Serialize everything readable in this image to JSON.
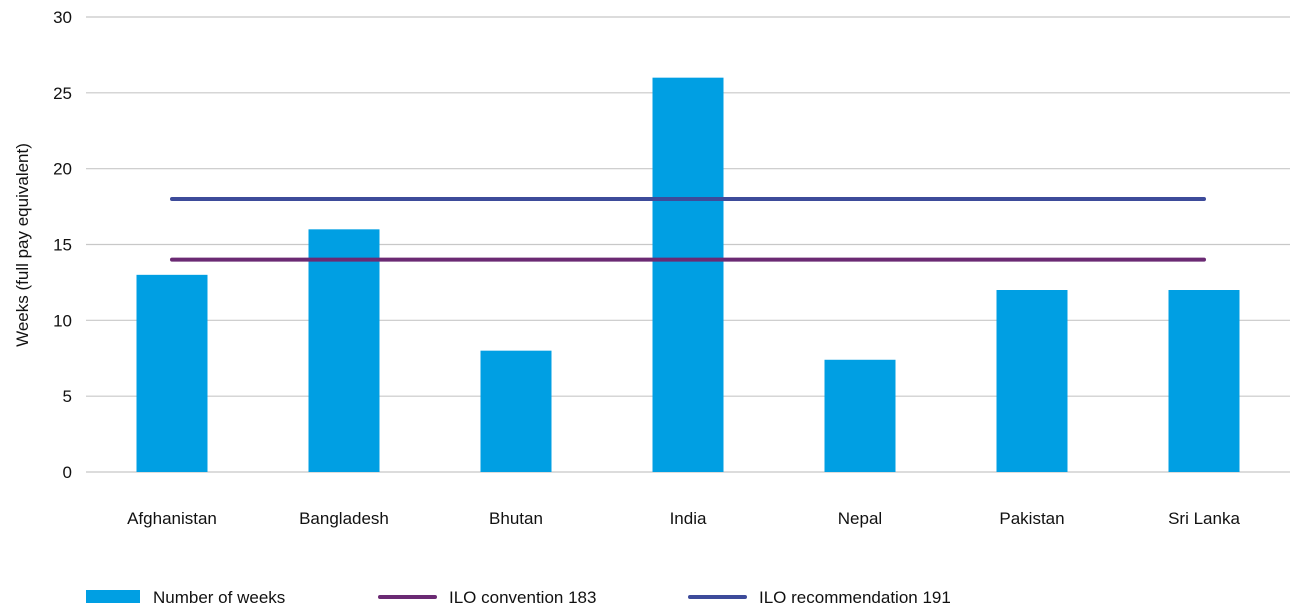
{
  "chart_data": {
    "type": "bar",
    "title": "",
    "xlabel": "",
    "ylabel": "Weeks (full pay equivalent)",
    "ylim": [
      0,
      30
    ],
    "yticks": [
      0,
      5,
      10,
      15,
      20,
      25,
      30
    ],
    "grid": true,
    "legend_position": "bottom-left",
    "categories": [
      "Afghanistan",
      "Bangladesh",
      "Bhutan",
      "India",
      "Nepal",
      "Pakistan",
      "Sri Lanka"
    ],
    "series": [
      {
        "name": "Number of weeks",
        "type": "bar",
        "color": "#009fe3",
        "values": [
          13,
          16,
          8,
          26,
          7.4,
          12,
          12
        ]
      },
      {
        "name": "ILO convention 183",
        "type": "line",
        "color": "#6b2a73",
        "values": [
          14,
          14,
          14,
          14,
          14,
          14,
          14
        ]
      },
      {
        "name": "ILO recommendation 191",
        "type": "line",
        "color": "#3d4b9a",
        "values": [
          18,
          18,
          18,
          18,
          18,
          18,
          18
        ]
      }
    ]
  }
}
